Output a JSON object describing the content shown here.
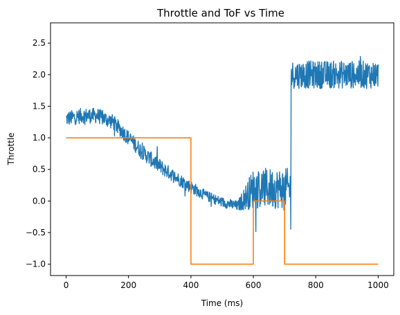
{
  "chart_data": {
    "type": "line",
    "title": "Throttle and ToF vs Time",
    "xlabel": "Time (ms)",
    "ylabel": "Throttle",
    "xlim": [
      -50,
      1050
    ],
    "ylim": [
      -1.18,
      2.82
    ],
    "x_ticks": [
      0,
      200,
      400,
      600,
      800,
      1000
    ],
    "x_tick_labels": [
      "0",
      "200",
      "400",
      "600",
      "800",
      "1000"
    ],
    "y_ticks": [
      -1.0,
      -0.5,
      0.0,
      0.5,
      1.0,
      1.5,
      2.0,
      2.5
    ],
    "y_tick_labels": [
      "−1.0",
      "−0.5",
      "0.0",
      "0.5",
      "1.0",
      "1.5",
      "2.0",
      "2.5"
    ],
    "grid": false,
    "legend": "none",
    "series": [
      {
        "color": "#1f77b4",
        "noisy": true,
        "x": [
          0,
          50,
          100,
          150,
          200,
          250,
          300,
          350,
          400,
          450,
          500,
          550,
          600,
          650,
          700,
          720,
          721,
          800,
          900,
          1000
        ],
        "y": [
          1.3,
          1.35,
          1.35,
          1.25,
          1.0,
          0.75,
          0.55,
          0.38,
          0.22,
          0.08,
          -0.02,
          -0.08,
          0.2,
          0.2,
          0.2,
          0.2,
          2.0,
          2.0,
          2.0,
          2.0
        ],
        "noise_amplitude": [
          0.12,
          0.12,
          0.12,
          0.12,
          0.12,
          0.12,
          0.12,
          0.1,
          0.1,
          0.08,
          0.08,
          0.08,
          0.32,
          0.32,
          0.32,
          0.32,
          0.22,
          0.22,
          0.22,
          0.22
        ]
      },
      {
        "color": "#ff7f0e",
        "noisy": false,
        "x": [
          0,
          400,
          400,
          600,
          600,
          700,
          700,
          1000
        ],
        "y": [
          1.0,
          1.0,
          -1.0,
          -1.0,
          0.0,
          0.0,
          -1.0,
          -1.0
        ]
      }
    ]
  }
}
